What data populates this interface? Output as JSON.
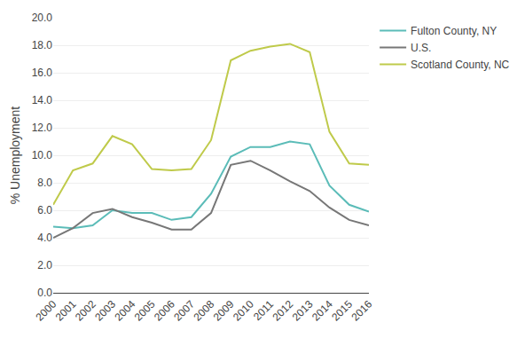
{
  "chart_data": {
    "type": "line",
    "ylabel": "% Unemployment",
    "x": [
      2000,
      2001,
      2002,
      2003,
      2004,
      2005,
      2006,
      2007,
      2008,
      2009,
      2010,
      2011,
      2012,
      2013,
      2014,
      2015,
      2016
    ],
    "series": [
      {
        "name": "Fulton County, NY",
        "color": "#5bbcb8",
        "values": [
          4.8,
          4.7,
          4.9,
          6.0,
          5.8,
          5.8,
          5.3,
          5.5,
          7.2,
          9.9,
          10.6,
          10.6,
          11.0,
          10.8,
          7.8,
          6.4,
          5.9
        ]
      },
      {
        "name": "U.S.",
        "color": "#777777",
        "values": [
          4.0,
          4.7,
          5.8,
          6.1,
          5.5,
          5.1,
          4.6,
          4.6,
          5.8,
          9.3,
          9.6,
          8.9,
          8.1,
          7.4,
          6.2,
          5.3,
          4.9
        ]
      },
      {
        "name": "Scotland County, NC",
        "color": "#bfca4a",
        "values": [
          6.4,
          8.9,
          9.4,
          11.4,
          10.8,
          9.0,
          8.9,
          9.0,
          11.1,
          16.9,
          17.6,
          17.9,
          18.1,
          17.5,
          11.7,
          9.4,
          9.3
        ]
      }
    ],
    "xlim": [
      2000,
      2016
    ],
    "xticks": [
      2000,
      2001,
      2002,
      2003,
      2004,
      2005,
      2006,
      2007,
      2008,
      2009,
      2010,
      2011,
      2012,
      2013,
      2014,
      2015,
      2016
    ],
    "ylim": [
      0,
      20
    ],
    "yticks": [
      {
        "value": 0,
        "label": "0.0"
      },
      {
        "value": 2,
        "label": "2.0"
      },
      {
        "value": 4,
        "label": "4.0"
      },
      {
        "value": 6,
        "label": "6.0"
      },
      {
        "value": 8,
        "label": "8.0"
      },
      {
        "value": 10,
        "label": "10.0"
      },
      {
        "value": 12,
        "label": "12.0"
      },
      {
        "value": 14,
        "label": "14.0"
      },
      {
        "value": 16,
        "label": "16.0"
      },
      {
        "value": 18,
        "label": "18.0"
      },
      {
        "value": 20,
        "label": "20.0"
      }
    ],
    "grid": "y",
    "legend": "right"
  }
}
